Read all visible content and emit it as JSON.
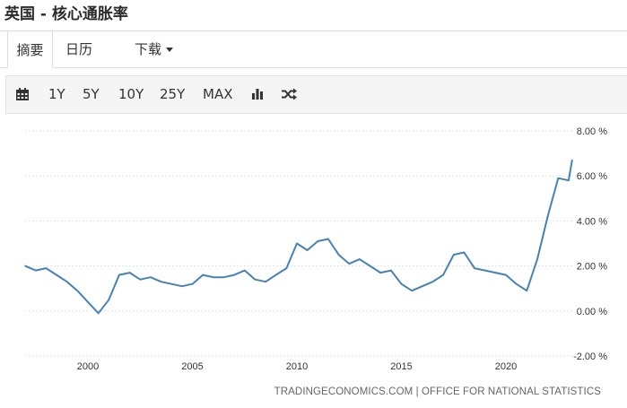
{
  "page": {
    "title": "英国 - 核心通胀率"
  },
  "tabs": [
    {
      "label": "摘要",
      "active": true
    },
    {
      "label": "日历",
      "active": false
    },
    {
      "label": "下载",
      "active": false
    }
  ],
  "toolbar": {
    "calendar_icon": "calendar-icon",
    "ranges": [
      "1Y",
      "5Y",
      "10Y",
      "25Y",
      "MAX"
    ],
    "bar_chart_icon": "bar-chart-icon",
    "shuffle_icon": "shuffle-icon"
  },
  "source": {
    "provider": "TRADINGECONOMICS.COM",
    "separator": "|",
    "agency": "OFFICE FOR NATIONAL STATISTICS"
  },
  "chart_data": {
    "type": "line",
    "title": "",
    "xlabel": "",
    "ylabel": "",
    "x_ticks": [
      "2000",
      "2005",
      "2010",
      "2015",
      "2020"
    ],
    "y_ticks": [
      "8.00 %",
      "6.00 %",
      "4.00 %",
      "2.00 %",
      "0.00 %",
      "-2.00 %"
    ],
    "ylim": [
      -2,
      8
    ],
    "xlim": [
      "1997-01",
      "2023-03"
    ],
    "grid": true,
    "line_color": "#4682b4",
    "series": [
      {
        "x": [
          "1997-01",
          "1997-07",
          "1998-01",
          "1998-07",
          "1999-01",
          "1999-07",
          "2000-01",
          "2000-07",
          "2001-01",
          "2001-07",
          "2002-01",
          "2002-07",
          "2003-01",
          "2003-07",
          "2004-01",
          "2004-07",
          "2005-01",
          "2005-07",
          "2006-01",
          "2006-07",
          "2007-01",
          "2007-07",
          "2008-01",
          "2008-07",
          "2009-01",
          "2009-07",
          "2010-01",
          "2010-07",
          "2011-01",
          "2011-07",
          "2012-01",
          "2012-07",
          "2013-01",
          "2013-07",
          "2014-01",
          "2014-07",
          "2015-01",
          "2015-07",
          "2016-01",
          "2016-07",
          "2017-01",
          "2017-07",
          "2018-01",
          "2018-07",
          "2019-01",
          "2019-07",
          "2020-01",
          "2020-07",
          "2021-01",
          "2021-07",
          "2022-01",
          "2022-07",
          "2023-01",
          "2023-03"
        ],
        "values": [
          2.0,
          1.8,
          1.9,
          1.6,
          1.3,
          0.9,
          0.4,
          -0.1,
          0.5,
          1.6,
          1.7,
          1.4,
          1.5,
          1.3,
          1.2,
          1.1,
          1.2,
          1.6,
          1.5,
          1.5,
          1.6,
          1.8,
          1.4,
          1.3,
          1.6,
          1.9,
          3.0,
          2.7,
          3.1,
          3.2,
          2.5,
          2.1,
          2.3,
          2.0,
          1.7,
          1.8,
          1.2,
          0.9,
          1.1,
          1.3,
          1.6,
          2.5,
          2.6,
          1.9,
          1.8,
          1.7,
          1.6,
          1.2,
          0.9,
          2.3,
          4.2,
          5.9,
          5.8,
          6.7
        ]
      }
    ]
  }
}
